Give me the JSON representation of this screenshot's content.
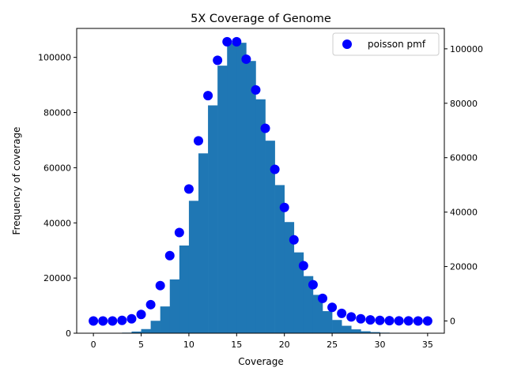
{
  "chart_data": {
    "type": "bar",
    "title": "5X Coverage of Genome",
    "xlabel": "Coverage",
    "ylabel": "Frequency of coverage",
    "xlim": [
      -1.75,
      36.75
    ],
    "ylim": [
      0,
      110500
    ],
    "ylim_right": [
      -4500,
      107500
    ],
    "xticks": [
      0,
      5,
      10,
      15,
      20,
      25,
      30,
      35
    ],
    "yticks": [
      0,
      20000,
      40000,
      60000,
      80000,
      100000
    ],
    "yticks_right": [
      0,
      20000,
      40000,
      60000,
      80000,
      100000
    ],
    "histogram": {
      "bin_edges": [
        0,
        1,
        2,
        3,
        4,
        5,
        6,
        7,
        8,
        9,
        10,
        11,
        12,
        13,
        14,
        15,
        16,
        17,
        18,
        19,
        20,
        21,
        22,
        23,
        24,
        25,
        26,
        27,
        28,
        29,
        30,
        31,
        32,
        33,
        34,
        35
      ],
      "counts": [
        0,
        0,
        0,
        200,
        600,
        1500,
        4500,
        9700,
        19500,
        31800,
        48000,
        65200,
        82600,
        97000,
        105200,
        105300,
        98700,
        84800,
        69800,
        53700,
        40300,
        29300,
        20700,
        13900,
        8000,
        4800,
        2700,
        1400,
        700,
        400,
        200,
        100,
        50,
        20,
        10
      ],
      "color": "#1f77b4"
    },
    "series": [
      {
        "name": "poisson pmf",
        "axis": "right",
        "x": [
          0,
          1,
          2,
          3,
          4,
          5,
          6,
          7,
          8,
          9,
          10,
          11,
          12,
          13,
          14,
          15,
          16,
          17,
          18,
          19,
          20,
          21,
          22,
          23,
          24,
          25,
          26,
          27,
          28,
          29,
          30,
          31,
          32,
          33,
          34,
          35
        ],
        "values": [
          0,
          0,
          0,
          200,
          800,
          2400,
          6000,
          13000,
          24000,
          32500,
          48500,
          66200,
          82800,
          95800,
          102600,
          102600,
          96200,
          84900,
          70800,
          55700,
          41700,
          29800,
          20300,
          13300,
          8300,
          5000,
          2800,
          1500,
          800,
          400,
          200,
          100,
          50,
          20,
          10,
          5
        ],
        "color": "#0000ff"
      }
    ],
    "legend": {
      "position": "top-right",
      "label": "poisson pmf"
    }
  }
}
